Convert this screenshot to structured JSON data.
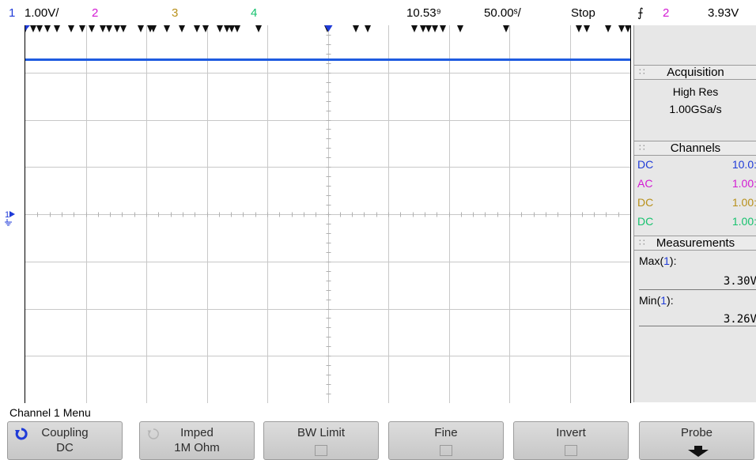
{
  "status_bar": {
    "ch1_num": "1",
    "ch1_scale": "1.00V/",
    "ch2_num": "2",
    "ch3_num": "3",
    "ch4_num": "4",
    "time_delay": "10.53⁹",
    "time_scale": "50.00ˢ/",
    "run_state": "Stop",
    "trigger_icon": "trigger-edge-icon",
    "trigger_channel": "2",
    "trigger_level": "3.93V"
  },
  "acquisition": {
    "title": "Acquisition",
    "mode": "High Res",
    "rate": "1.00GSa/s"
  },
  "channels": {
    "title": "Channels",
    "rows": [
      {
        "coupling": "DC",
        "probe": "10.0:",
        "color": "#1f3bd8"
      },
      {
        "coupling": "AC",
        "probe": "1.00:",
        "color": "#d31ad3"
      },
      {
        "coupling": "DC",
        "probe": "1.00:",
        "color": "#b8901a"
      },
      {
        "coupling": "DC",
        "probe": "1.00:",
        "color": "#16c26e"
      }
    ]
  },
  "measurements": {
    "title": "Measurements",
    "max_label": "Max",
    "max_ch": "1",
    "max_value": "3.30V",
    "min_label": "Min",
    "min_ch": "1",
    "min_value": "3.26V"
  },
  "menu": {
    "title": "Channel 1 Menu",
    "softkeys": [
      {
        "label": "Coupling",
        "value": "DC"
      },
      {
        "label": "Imped",
        "value": "1M Ohm"
      },
      {
        "label": "BW Limit",
        "value": ""
      },
      {
        "label": "Fine",
        "value": ""
      },
      {
        "label": "Invert",
        "value": ""
      },
      {
        "label": "Probe",
        "value": ""
      }
    ]
  },
  "ground_marker": {
    "label": "1"
  },
  "colors": {
    "ch1": "#1f3bd8",
    "ch2": "#d31ad3",
    "ch3": "#b8901a",
    "ch4": "#16c26e",
    "trace": "#1f5be0"
  }
}
